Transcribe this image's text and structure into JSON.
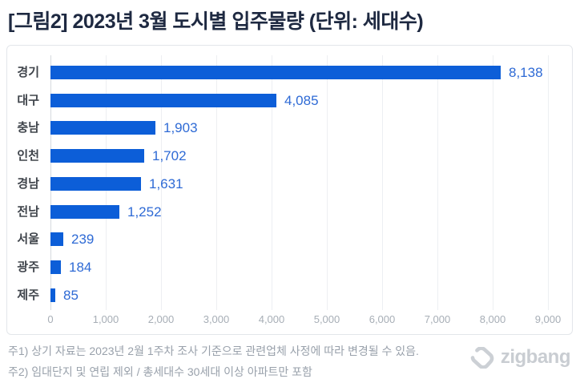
{
  "title": "[그림2] 2023년 3월 도시별 입주물량 (단위: 세대수)",
  "chart_data": {
    "type": "bar",
    "orientation": "horizontal",
    "categories": [
      "경기",
      "대구",
      "충남",
      "인천",
      "경남",
      "전남",
      "서울",
      "광주",
      "제주"
    ],
    "values": [
      8138,
      4085,
      1903,
      1702,
      1631,
      1252,
      239,
      184,
      85
    ],
    "value_labels": [
      "8,138",
      "4,085",
      "1,903",
      "1,702",
      "1,631",
      "1,252",
      "239",
      "184",
      "85"
    ],
    "xlim": [
      0,
      9000
    ],
    "x_ticks": [
      "0",
      "1,000",
      "2,000",
      "3,000",
      "4,000",
      "5,000",
      "6,000",
      "7,000",
      "8,000",
      "9,000"
    ],
    "grid": true,
    "bar_color": "#0c5ed8",
    "value_label_color": "#2e6ad5"
  },
  "footnotes": [
    "주1) 상기 자료는 2023년 2월 1주차 조사 기준으로 관련업체 사정에 따라 변경될 수 있음.",
    "주2) 임대단지 및 연립 제외 / 총세대수 30세대 이상 아파트만 포함"
  ],
  "logo": {
    "text": "zigbang"
  }
}
